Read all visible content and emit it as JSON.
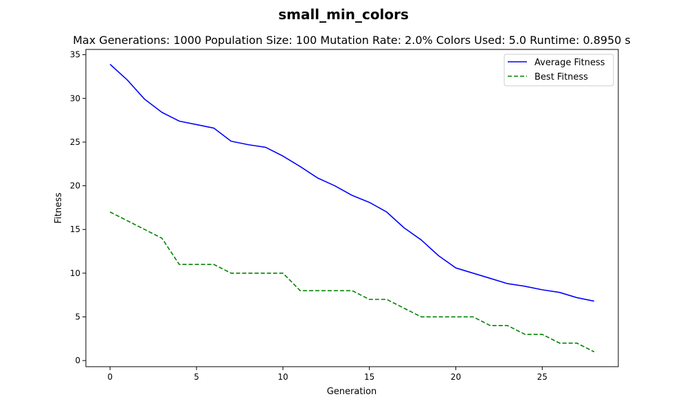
{
  "chart_data": {
    "type": "line",
    "title": "small_min_colors",
    "subtitle": "Max Generations: 1000  Population Size: 100  Mutation Rate: 2.0%  Colors Used: 5.0  Runtime: 0.8950 s",
    "xlabel": "Generation",
    "ylabel": "Fitness",
    "xlim": [
      -1.4,
      29.4
    ],
    "ylim": [
      -0.7,
      35.6
    ],
    "xticks": [
      0,
      5,
      10,
      15,
      20,
      25
    ],
    "yticks": [
      0,
      5,
      10,
      15,
      20,
      25,
      30,
      35
    ],
    "grid": false,
    "legend_position": "top-right",
    "x": [
      0,
      1,
      2,
      3,
      4,
      5,
      6,
      7,
      8,
      9,
      10,
      11,
      12,
      13,
      14,
      15,
      16,
      17,
      18,
      19,
      20,
      21,
      22,
      23,
      24,
      25,
      26,
      27,
      28
    ],
    "series": [
      {
        "name": "Average Fitness",
        "color": "#0000ff",
        "style": "solid",
        "values": [
          33.9,
          32.1,
          29.9,
          28.4,
          27.4,
          27.0,
          26.6,
          25.1,
          24.7,
          24.4,
          23.4,
          22.2,
          20.9,
          20.0,
          18.9,
          18.1,
          17.0,
          15.2,
          13.8,
          12.0,
          10.6,
          10.0,
          9.4,
          8.8,
          8.5,
          8.1,
          7.8,
          7.2,
          6.8
        ]
      },
      {
        "name": "Best Fitness",
        "color": "#008000",
        "style": "dashed",
        "values": [
          17,
          16,
          15,
          14,
          11,
          11,
          11,
          10,
          10,
          10,
          10,
          8,
          8,
          8,
          8,
          7,
          7,
          6,
          5,
          5,
          5,
          5,
          4,
          4,
          3,
          3,
          2,
          2,
          1
        ]
      }
    ]
  }
}
